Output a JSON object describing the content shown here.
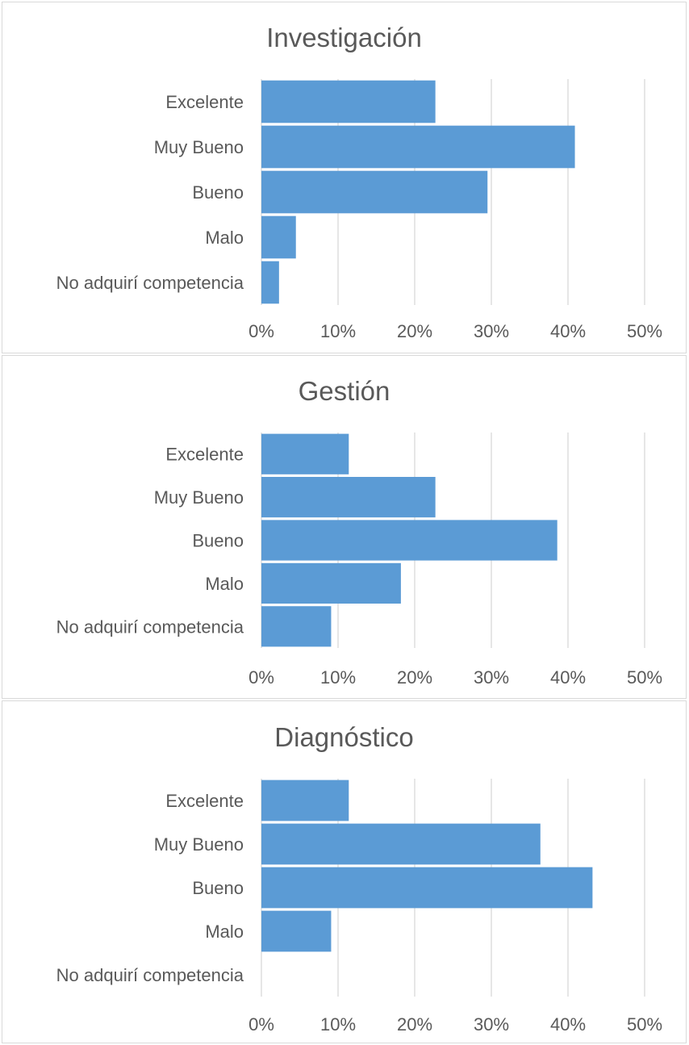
{
  "chart_data": [
    {
      "type": "bar",
      "orientation": "horizontal",
      "title": "Investigación",
      "categories": [
        "Excelente",
        "Muy Bueno",
        "Bueno",
        "Malo",
        "No adquirí competencia"
      ],
      "values": [
        22.7,
        40.9,
        29.5,
        4.5,
        2.3
      ],
      "xlim": [
        0,
        50
      ],
      "xticks": [
        "0%",
        "10%",
        "20%",
        "30%",
        "40%",
        "50%"
      ],
      "grid": true,
      "bar_color": "#5b9bd5"
    },
    {
      "type": "bar",
      "orientation": "horizontal",
      "title": "Gestión",
      "categories": [
        "Excelente",
        "Muy Bueno",
        "Bueno",
        "Malo",
        "No adquirí competencia"
      ],
      "values": [
        11.4,
        22.7,
        38.6,
        18.2,
        9.1
      ],
      "xlim": [
        0,
        50
      ],
      "xticks": [
        "0%",
        "10%",
        "20%",
        "30%",
        "40%",
        "50%"
      ],
      "grid": true,
      "bar_color": "#5b9bd5"
    },
    {
      "type": "bar",
      "orientation": "horizontal",
      "title": "Diagnóstico",
      "categories": [
        "Excelente",
        "Muy Bueno",
        "Bueno",
        "Malo",
        "No adquirí competencia"
      ],
      "values": [
        11.4,
        36.4,
        43.2,
        9.1,
        0
      ],
      "xlim": [
        0,
        50
      ],
      "xticks": [
        "0%",
        "10%",
        "20%",
        "30%",
        "40%",
        "50%"
      ],
      "grid": true,
      "bar_color": "#5b9bd5"
    }
  ]
}
